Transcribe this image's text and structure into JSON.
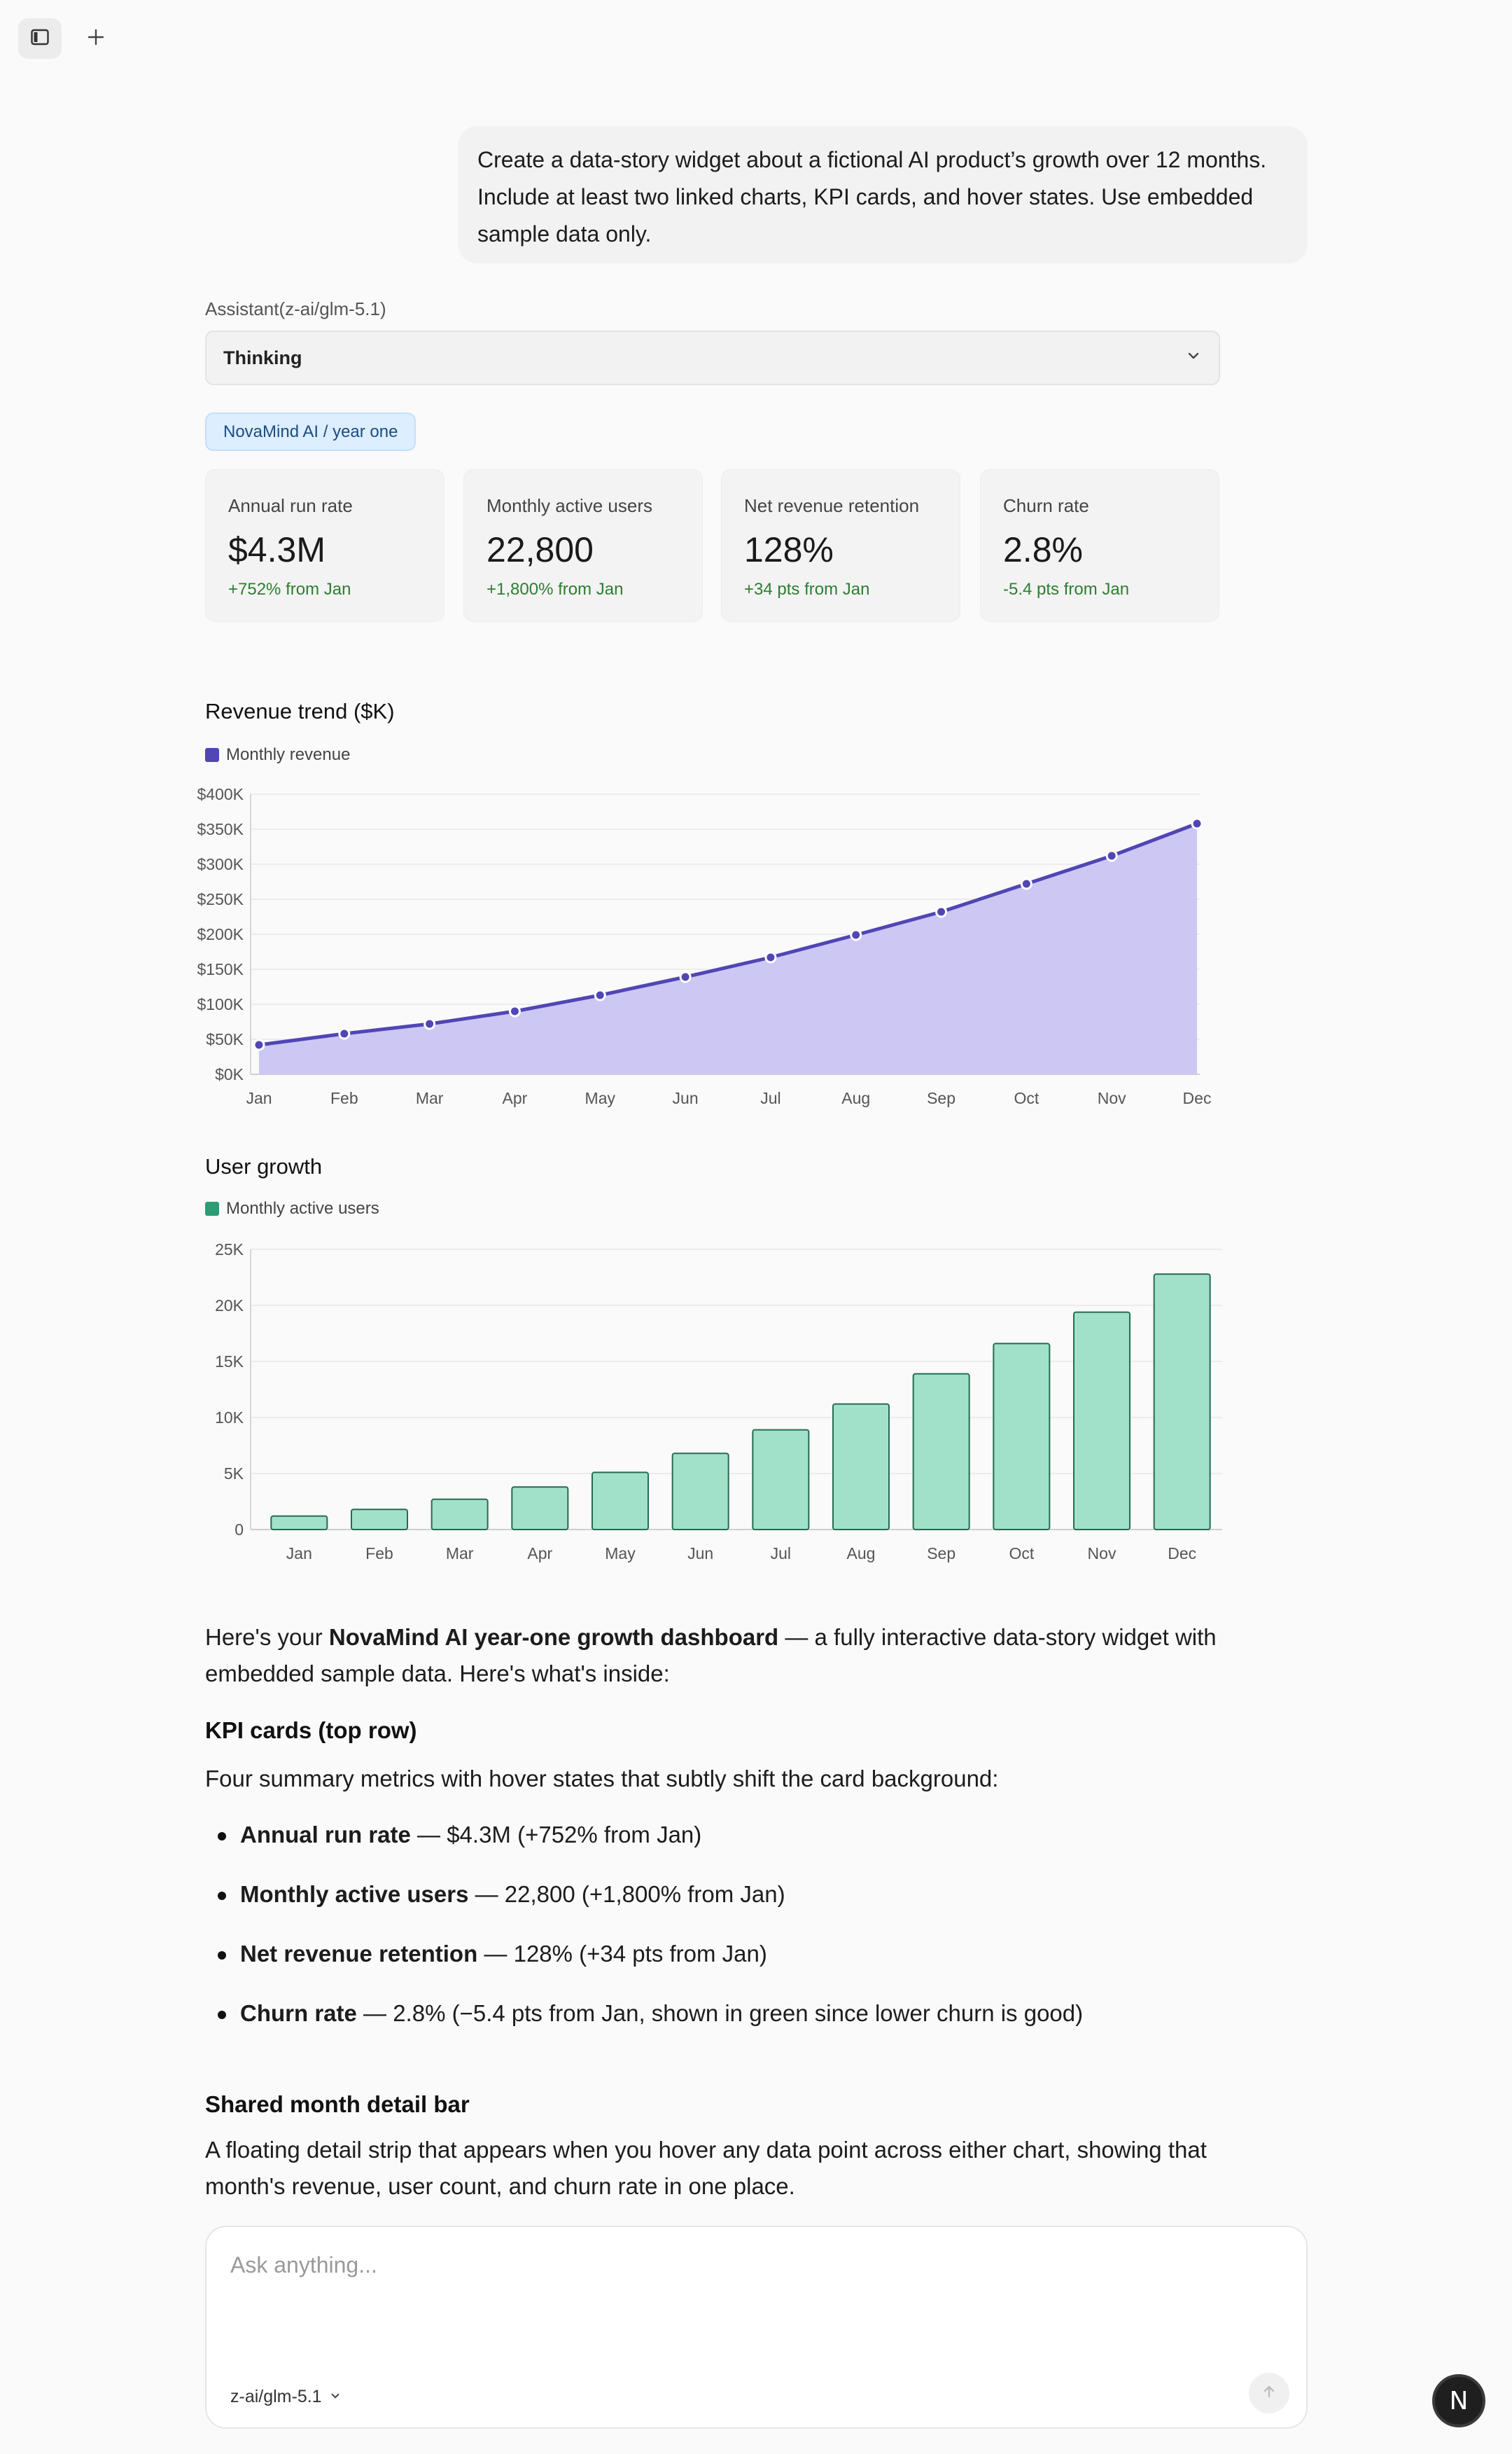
{
  "prompt": "Create a data-story widget about a fictional AI product’s growth over 12 months. Include at least two linked charts, KPI cards, and hover states. Use embedded sample data only.",
  "assistant_label": "Assistant(z-ai/glm-5.1)",
  "thinking_label": "Thinking",
  "tag": "NovaMind AI / year one",
  "kpis": [
    {
      "label": "Annual run rate",
      "value": "$4.3M",
      "delta": "+752% from Jan"
    },
    {
      "label": "Monthly active users",
      "value": "22,800",
      "delta": "+1,800% from Jan"
    },
    {
      "label": "Net revenue retention",
      "value": "128%",
      "delta": "+34 pts from Jan"
    },
    {
      "label": "Churn rate",
      "value": "2.8%",
      "delta": "-5.4 pts from Jan"
    }
  ],
  "revenue_chart": {
    "title": "Revenue trend ($K)",
    "legend": "Monthly revenue",
    "color": "#5046b4",
    "fill": "#cdc7f4"
  },
  "users_chart": {
    "title": "User growth",
    "legend": "Monthly active users",
    "color": "#2a9d74",
    "fill": "#a1e1ca",
    "stroke": "#256b52"
  },
  "chart_data": [
    {
      "type": "area",
      "title": "Revenue trend ($K)",
      "categories": [
        "Jan",
        "Feb",
        "Mar",
        "Apr",
        "May",
        "Jun",
        "Jul",
        "Aug",
        "Sep",
        "Oct",
        "Nov",
        "Dec"
      ],
      "series": [
        {
          "name": "Monthly revenue",
          "values": [
            42,
            58,
            72,
            90,
            113,
            139,
            167,
            199,
            232,
            272,
            312,
            358
          ]
        }
      ],
      "ylim": [
        0,
        400
      ],
      "yticks": [
        "$0K",
        "$50K",
        "$100K",
        "$150K",
        "$200K",
        "$250K",
        "$300K",
        "$350K",
        "$400K"
      ],
      "grid": true,
      "legend": "top-left"
    },
    {
      "type": "bar",
      "title": "User growth",
      "categories": [
        "Jan",
        "Feb",
        "Mar",
        "Apr",
        "May",
        "Jun",
        "Jul",
        "Aug",
        "Sep",
        "Oct",
        "Nov",
        "Dec"
      ],
      "series": [
        {
          "name": "Monthly active users",
          "values": [
            1200,
            1800,
            2700,
            3800,
            5100,
            6800,
            8900,
            11200,
            13900,
            16600,
            19400,
            22800
          ]
        }
      ],
      "ylim": [
        0,
        25000
      ],
      "yticks": [
        "0",
        "5K",
        "10K",
        "15K",
        "20K",
        "25K"
      ],
      "grid": true,
      "legend": "top-left"
    }
  ],
  "response": {
    "intro_before": "Here's your ",
    "intro_bold": "NovaMind AI year-one growth dashboard",
    "intro_after": " — a fully interactive data-story widget with embedded sample data. Here's what's inside:",
    "kpi_heading": "KPI cards (top row)",
    "kpi_desc": "Four summary metrics with hover states that subtly shift the card background:",
    "bullets": [
      {
        "bold": "Annual run rate",
        "rest": " — $4.3M (+752% from Jan)"
      },
      {
        "bold": "Monthly active users",
        "rest": " — 22,800 (+1,800% from Jan)"
      },
      {
        "bold": "Net revenue retention",
        "rest": " — 128% (+34 pts from Jan)"
      },
      {
        "bold": "Churn rate",
        "rest": " — 2.8% (−5.4 pts from Jan, shown in green since lower churn is good)"
      }
    ],
    "detail_heading": "Shared month detail bar",
    "detail_desc": "A floating detail strip that appears when you hover any data point across either chart, showing that month's revenue, user count, and churn rate in one place."
  },
  "composer": {
    "placeholder": "Ask anything...",
    "model": "z-ai/glm-5.1"
  },
  "avatar_letter": "N"
}
